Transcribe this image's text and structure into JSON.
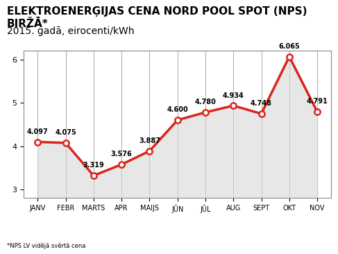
{
  "chart_data": {
    "type": "line",
    "title": "ELEKTROENERĢIJAS CENA NORD POOL SPOT (NPS) BIRŽĀ*",
    "subtitle": "2015. gadā, eirocenti/kWh",
    "footnote": "*NPS LV vidējā svērtā cena",
    "categories": [
      "JANV",
      "FEBR",
      "MARTS",
      "APR",
      "MAIJS",
      "JŪN",
      "JŪL",
      "AUG",
      "SEPT",
      "OKT",
      "NOV"
    ],
    "values": [
      4.097,
      4.075,
      3.319,
      3.576,
      3.887,
      4.6,
      4.78,
      4.934,
      4.748,
      6.065,
      4.791
    ],
    "value_labels": [
      "4.097",
      "4.075",
      "3.319",
      "3.576",
      "3.887",
      "4.600",
      "4.780",
      "4.934",
      "4.748",
      "6.065",
      "4.791"
    ],
    "color": "#d9261c",
    "marker": "o",
    "line_style": "solid",
    "ylim": [
      2.8,
      6.2
    ],
    "yticks": [
      3,
      4,
      5,
      6
    ],
    "grid": true,
    "data_labels": true
  }
}
